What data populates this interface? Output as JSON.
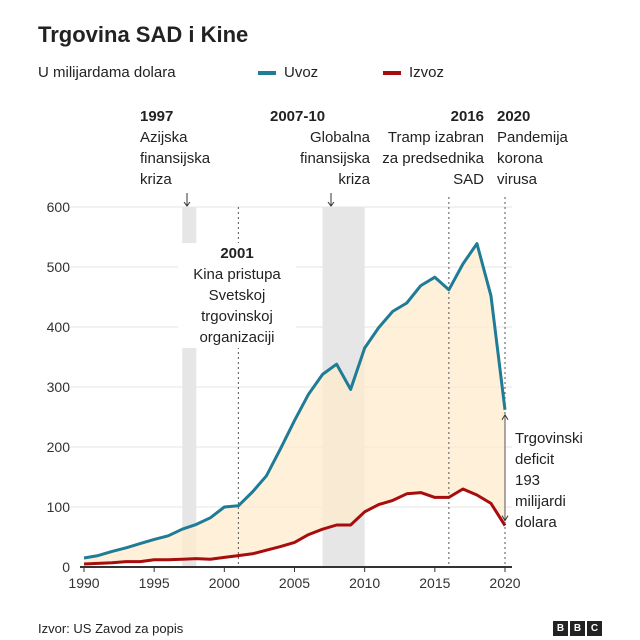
{
  "title": "Trgovina SAD i Kine",
  "subtitle": "U milijardama dolara",
  "legend": {
    "imports": "Uvoz",
    "exports": "Izvoz"
  },
  "colors": {
    "imports": "#1f7c96",
    "exports": "#a80d0d",
    "fill": "#fdebcc",
    "band": "#e6e6e6"
  },
  "annotations": {
    "a1997": {
      "year": "1997",
      "lines": [
        "Azijska",
        "finansijska",
        "kriza"
      ]
    },
    "a2007": {
      "year": "2007-10",
      "lines": [
        "Globalna",
        "finansijska",
        "kriza"
      ]
    },
    "a2016": {
      "year": "2016",
      "lines": [
        "Tramp izabran",
        "za predsednika",
        "SAD"
      ]
    },
    "a2020": {
      "year": "2020",
      "lines": [
        "Pandemija",
        "korona",
        "virusa"
      ]
    },
    "a2001": {
      "year": "2001",
      "lines": [
        "Kina pristupa",
        "Svetskoj",
        "trgovinskoj",
        "organizaciji"
      ]
    },
    "deficit": {
      "lines": [
        "Trgovinski",
        "deficit",
        "193",
        "milijardi",
        "dolara"
      ]
    }
  },
  "source": "Izvor: US Zavod za popis",
  "brand": [
    "B",
    "B",
    "C"
  ],
  "chart_data": {
    "type": "line",
    "title": "Trgovina SAD i Kine",
    "ylabel": "U milijardama dolara",
    "ylim": [
      0,
      600
    ],
    "yticks": [
      0,
      100,
      200,
      300,
      400,
      500,
      600
    ],
    "xticks": [
      1990,
      1995,
      2000,
      2005,
      2010,
      2015,
      2020
    ],
    "x": [
      1990,
      1991,
      1992,
      1993,
      1994,
      1995,
      1996,
      1997,
      1998,
      1999,
      2000,
      2001,
      2002,
      2003,
      2004,
      2005,
      2006,
      2007,
      2008,
      2009,
      2010,
      2011,
      2012,
      2013,
      2014,
      2015,
      2016,
      2017,
      2018,
      2019,
      2020
    ],
    "series": [
      {
        "name": "Uvoz",
        "values": [
          15,
          19,
          26,
          32,
          39,
          46,
          52,
          63,
          71,
          82,
          100,
          102,
          125,
          152,
          197,
          244,
          288,
          321,
          338,
          296,
          365,
          399,
          426,
          440,
          469,
          483,
          462,
          505,
          539,
          452,
          262
        ]
      },
      {
        "name": "Izvoz",
        "values": [
          5,
          6,
          7,
          9,
          9,
          12,
          12,
          13,
          14,
          13,
          16,
          19,
          22,
          28,
          34,
          41,
          54,
          63,
          70,
          70,
          92,
          104,
          111,
          122,
          124,
          116,
          116,
          130,
          120,
          106,
          69
        ]
      }
    ],
    "bands": [
      [
        1997,
        1998
      ],
      [
        2007,
        2010
      ]
    ],
    "markers": [
      2001,
      2016,
      2020
    ]
  }
}
